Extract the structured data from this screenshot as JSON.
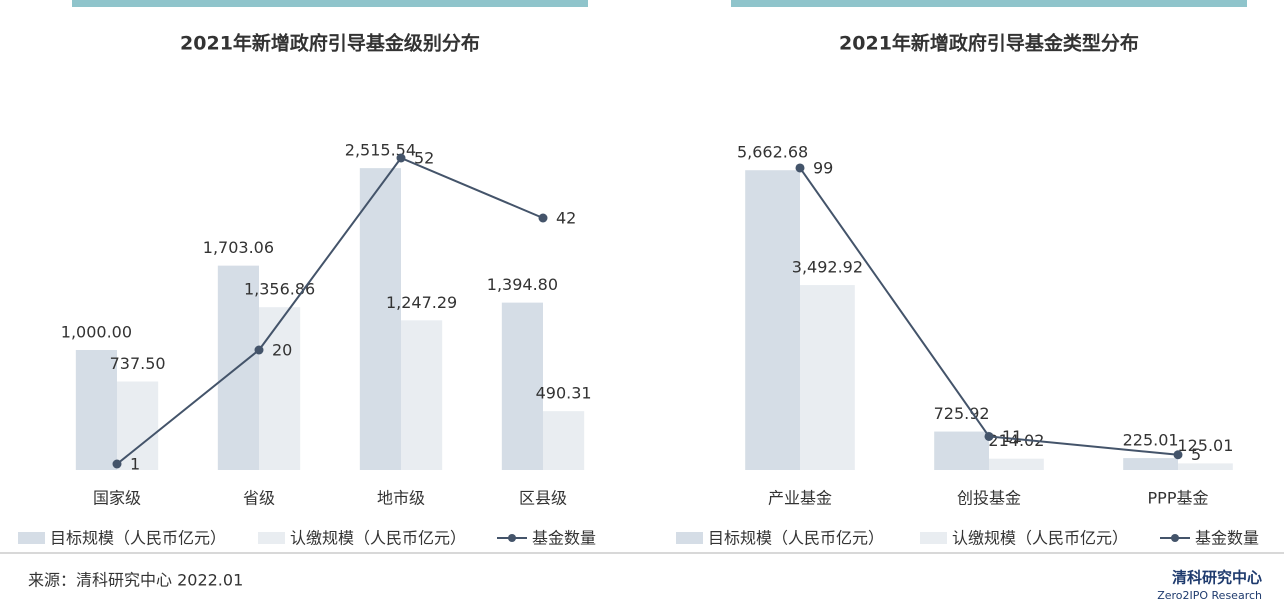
{
  "chart_data": [
    {
      "type": "combo",
      "title": "2021年新增政府引导基金级别分布",
      "categories": [
        "国家级",
        "省级",
        "地市级",
        "区县级"
      ],
      "series": [
        {
          "name": "目标规模（人民币亿元）",
          "color": "#d5dde6",
          "values": [
            1000.0,
            1703.06,
            2515.54,
            1394.8
          ],
          "value_labels": [
            "1,000.00",
            "1,703.06",
            "2,515.54",
            "1,394.80"
          ]
        },
        {
          "name": "认缴规模（人民币亿元）",
          "color": "#e9edf1",
          "values": [
            737.5,
            1356.86,
            1247.29,
            490.31
          ],
          "value_labels": [
            "737.50",
            "1,356.86",
            "1,247.29",
            "490.31"
          ]
        },
        {
          "name": "基金数量",
          "type": "line",
          "axis": "y2",
          "color": "#44546a",
          "values": [
            1,
            20,
            52,
            42
          ]
        }
      ],
      "ylim": [
        0,
        3000
      ],
      "y2lim": [
        0,
        60
      ]
    },
    {
      "type": "combo",
      "title": "2021年新增政府引导基金类型分布",
      "categories": [
        "产业基金",
        "创投基金",
        "PPP基金"
      ],
      "series": [
        {
          "name": "目标规模（人民币亿元）",
          "color": "#d5dde6",
          "values": [
            5662.68,
            725.92,
            225.01
          ],
          "value_labels": [
            "5,662.68",
            "725.92",
            "225.01"
          ]
        },
        {
          "name": "认缴规模（人民币亿元）",
          "color": "#e9edf1",
          "values": [
            3492.92,
            214.02,
            125.01
          ],
          "value_labels": [
            "3,492.92",
            "214.02",
            "125.01"
          ]
        },
        {
          "name": "基金数量",
          "type": "line",
          "axis": "y2",
          "color": "#44546a",
          "values": [
            99,
            11,
            5
          ]
        }
      ],
      "ylim": [
        0,
        6800
      ],
      "y2lim": [
        0,
        118
      ]
    }
  ],
  "footer": {
    "source": "来源：清科研究中心 2022.01",
    "logo": "清科研究中心",
    "logo_sub": "Zero2IPO Research"
  }
}
